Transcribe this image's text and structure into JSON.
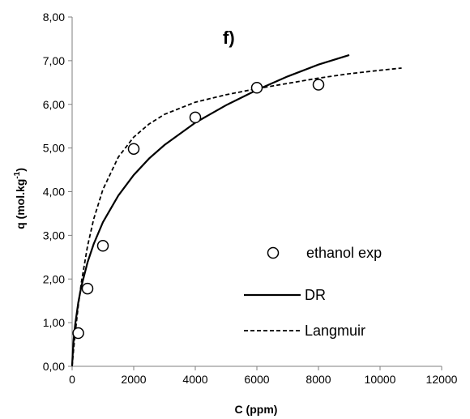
{
  "chart_data": {
    "type": "scatter",
    "panel_label": "f)",
    "xlabel": "C (ppm)",
    "ylabel_main": "q (mol.kg",
    "ylabel_sup": "-1",
    "ylabel_close": ")",
    "xlim": [
      0,
      12000
    ],
    "ylim": [
      0,
      8
    ],
    "x_ticks": [
      0,
      2000,
      4000,
      6000,
      8000,
      10000,
      12000
    ],
    "x_tick_labels": [
      "0",
      "2000",
      "4000",
      "6000",
      "8000",
      "10000",
      "12000"
    ],
    "y_ticks": [
      0,
      1,
      2,
      3,
      4,
      5,
      6,
      7,
      8
    ],
    "y_tick_labels": [
      "0,00",
      "1,00",
      "2,00",
      "3,00",
      "4,00",
      "5,00",
      "6,00",
      "7,00",
      "8,00"
    ],
    "grid": false,
    "legend_position": "lower-right",
    "series": [
      {
        "name": "ethanol exp",
        "kind": "markers",
        "marker": "open-circle",
        "x": [
          200,
          500,
          1000,
          2000,
          4000,
          6000,
          8000
        ],
        "y": [
          0.76,
          1.78,
          2.76,
          4.98,
          5.7,
          6.38,
          6.45
        ]
      },
      {
        "name": "DR",
        "kind": "line",
        "style": "solid",
        "x": [
          0,
          20,
          50,
          100,
          200,
          300,
          500,
          700,
          1000,
          1500,
          2000,
          2500,
          3000,
          4000,
          5000,
          6000,
          7000,
          8000,
          9000
        ],
        "y": [
          0.02,
          0.3,
          0.62,
          0.96,
          1.46,
          1.83,
          2.38,
          2.8,
          3.3,
          3.91,
          4.38,
          4.76,
          5.07,
          5.58,
          5.98,
          6.33,
          6.64,
          6.91,
          7.13
        ]
      },
      {
        "name": "Langmuir",
        "kind": "line",
        "style": "dashed",
        "x": [
          0,
          50,
          100,
          200,
          300,
          500,
          700,
          1000,
          1500,
          2000,
          2500,
          3000,
          4000,
          5000,
          6000,
          7000,
          8000,
          9000,
          10000,
          10700
        ],
        "y": [
          0.0,
          0.4,
          0.76,
          1.39,
          1.92,
          2.75,
          3.37,
          4.05,
          4.79,
          5.25,
          5.55,
          5.77,
          6.05,
          6.22,
          6.36,
          6.48,
          6.6,
          6.7,
          6.78,
          6.83
        ]
      }
    ],
    "colors": {
      "line": "#000000",
      "axis": "#7f7f7f",
      "marker_fill": "#ffffff"
    }
  }
}
